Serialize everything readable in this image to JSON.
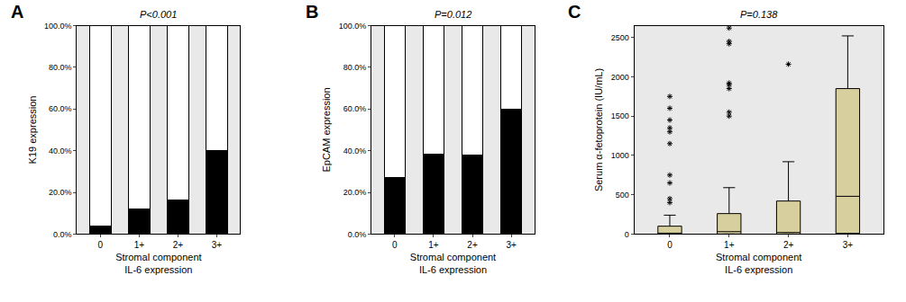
{
  "chart_data": [
    {
      "type": "bar",
      "panel_label": "A",
      "title": "P<0.001",
      "xlabel": [
        "Stromal component",
        "IL-6 expression"
      ],
      "ylabel": "K19 expression",
      "categories": [
        "0",
        "1+",
        "2+",
        "3+"
      ],
      "series": [
        {
          "color": "#000000",
          "values": [
            4,
            12,
            16.5,
            40
          ]
        },
        {
          "color": "#ffffff",
          "values": [
            96,
            88,
            83.5,
            60
          ]
        }
      ],
      "stacked": true,
      "grid": false,
      "ylim": [
        0,
        100
      ],
      "yticks": [
        {
          "value": 0,
          "label": "0.0%"
        },
        {
          "value": 20,
          "label": "20.0%"
        },
        {
          "value": 40,
          "label": "40.0%"
        },
        {
          "value": 60,
          "label": "60.0%"
        },
        {
          "value": 80,
          "label": "80.0%"
        },
        {
          "value": 100,
          "label": "100.0%"
        }
      ]
    },
    {
      "type": "bar",
      "panel_label": "B",
      "title": "P=0.012",
      "xlabel": [
        "Stromal component",
        "IL-6 expression"
      ],
      "ylabel": "EpCAM expression",
      "categories": [
        "0",
        "1+",
        "2+",
        "3+"
      ],
      "series": [
        {
          "color": "#000000",
          "values": [
            27,
            38.5,
            38,
            60
          ]
        },
        {
          "color": "#ffffff",
          "values": [
            73,
            61.5,
            62,
            40
          ]
        }
      ],
      "stacked": true,
      "grid": false,
      "ylim": [
        0,
        100
      ],
      "yticks": [
        {
          "value": 0,
          "label": "0.0%"
        },
        {
          "value": 20,
          "label": "20.0%"
        },
        {
          "value": 40,
          "label": "40.0%"
        },
        {
          "value": 60,
          "label": "60.0%"
        },
        {
          "value": 80,
          "label": "80.0%"
        },
        {
          "value": 100,
          "label": "100.0%"
        }
      ]
    },
    {
      "type": "box",
      "panel_label": "C",
      "title": "P=0.138",
      "xlabel": [
        "Stromal component",
        "IL-6 expression"
      ],
      "ylabel": "Serum α-fetoprotein (IU/mL)",
      "categories": [
        "0",
        "1+",
        "2+",
        "3+"
      ],
      "color": "#d8cf9f",
      "marker": "asterisk",
      "grid": false,
      "boxes": [
        {
          "min": 0,
          "q1": 0,
          "median": 10,
          "q3": 100,
          "max": 240,
          "outliers": [
            1750,
            1600,
            1450,
            1350,
            1300,
            1150,
            750,
            650,
            450,
            400
          ]
        },
        {
          "min": 0,
          "q1": 0,
          "median": 30,
          "q3": 260,
          "max": 590,
          "outliers": [
            2620,
            2450,
            2420,
            1920,
            1900,
            1850,
            1550,
            1500
          ]
        },
        {
          "min": 0,
          "q1": 0,
          "median": 20,
          "q3": 420,
          "max": 920,
          "outliers": [
            2160
          ]
        },
        {
          "min": 0,
          "q1": 10,
          "median": 480,
          "q3": 1850,
          "max": 2520,
          "outliers": []
        }
      ],
      "ylim": [
        0,
        2650
      ],
      "yticks": [
        0,
        500,
        1000,
        1500,
        2000,
        2500
      ]
    }
  ]
}
